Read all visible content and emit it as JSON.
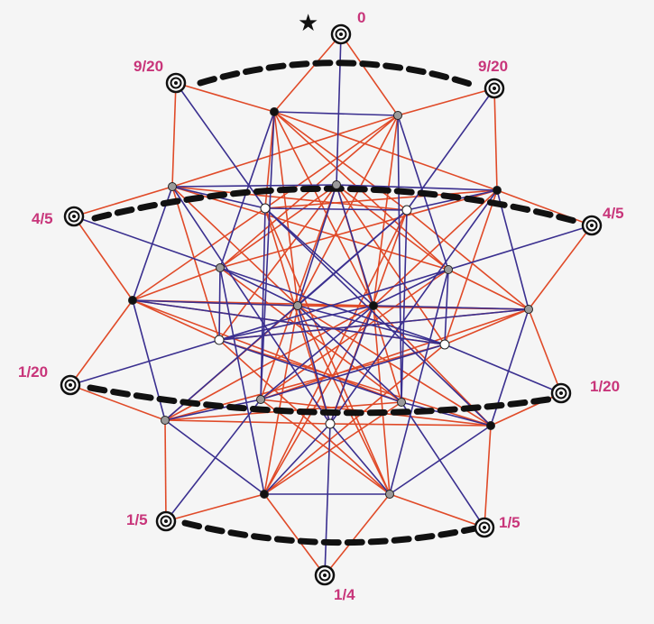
{
  "colors": {
    "background": "#f5f5f5",
    "red_edge": "#e04a28",
    "blue_edge": "#3a2f8f",
    "label": "#c8357a",
    "dashed": "#111111",
    "node_black": "#111111",
    "node_gray": "#9a9a9a",
    "node_white": "#ffffff"
  },
  "symbols": {
    "star": "★"
  },
  "labels": {
    "top": "0",
    "nw": "9/20",
    "ne": "9/20",
    "w_upper": "4/5",
    "e_upper": "4/5",
    "w_lower": "1/20",
    "e_lower": "1/20",
    "sw": "1/5",
    "se": "1/5",
    "bottom": "1/4"
  }
}
